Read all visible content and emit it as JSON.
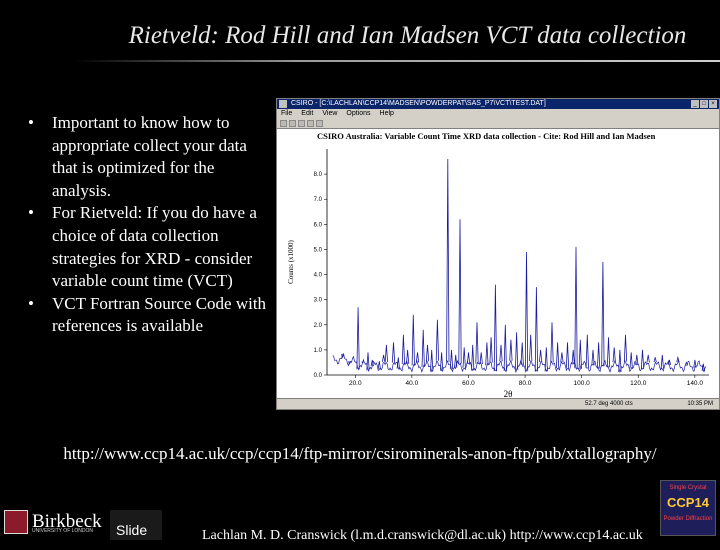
{
  "slide": {
    "title": "Rietveld: Rod Hill and Ian Madsen VCT data collection",
    "bullets": [
      "Important to know how to appropriate collect your data that is optimized for the analysis.",
      "For Rietveld: If you do have a choice of data collection strategies for XRD - consider variable count time (VCT)",
      "VCT Fortran Source Code with references is available"
    ],
    "bullet_marker": "•",
    "url": "http://www.ccp14.ac.uk/ccp/ccp14/ftp-mirror/csirominerals-anon-ftp/pub/xtallography/",
    "footer": {
      "institution": "Birkbeck",
      "institution_sub": "UNIVERSITY OF LONDON",
      "slide_label": "Slide",
      "author": "Lachlan M. D. Cranswick (l.m.d.cranswick@dl.ac.uk) http://www.ccp14.ac.uk",
      "ccp_logo_top": "Single Crystal",
      "ccp_logo_mid": "CCP14",
      "ccp_logo_bottom": "Powder Diffraction"
    }
  },
  "screenshot": {
    "window_title": "CSIRO - [C:\\LACHLAN\\CCP14\\MADSEN\\POWDERPAT\\SAS_P7\\VCT\\TEST.DAT]",
    "menu": [
      "File",
      "Edit",
      "View",
      "Options",
      "Help"
    ],
    "status_left": "52.7 deg 4000 cts",
    "status_right": "10:35 PM",
    "icons": [
      "app-icon",
      "minimize-icon",
      "maximize-icon",
      "close-icon"
    ]
  },
  "chart_data": {
    "type": "line",
    "title": "CSIRO Australia: Variable Count Time XRD data collection - Cite: Rod Hill and Ian Madsen",
    "xlabel": "2θ",
    "ylabel": "Counts (x1000)",
    "xlim": [
      10,
      145
    ],
    "ylim": [
      0,
      9
    ],
    "x_ticks": [
      "20.0",
      "40.0",
      "60.0",
      "80.0",
      "100.0",
      "120.0",
      "140.0"
    ],
    "y_ticks": [
      "0.0",
      "1.0",
      "2.0",
      "3.0",
      "4.0",
      "5.0",
      "6.0",
      "7.0",
      "8.0"
    ],
    "line_color": "#1a1aa0",
    "peaks": [
      {
        "x": 15.5,
        "y": 0.7
      },
      {
        "x": 18.0,
        "y": 0.45
      },
      {
        "x": 21.0,
        "y": 2.7
      },
      {
        "x": 22.6,
        "y": 0.5
      },
      {
        "x": 24.5,
        "y": 0.9
      },
      {
        "x": 26.0,
        "y": 0.6
      },
      {
        "x": 28.5,
        "y": 0.55
      },
      {
        "x": 30.0,
        "y": 0.8
      },
      {
        "x": 31.0,
        "y": 1.2
      },
      {
        "x": 33.5,
        "y": 1.3
      },
      {
        "x": 35.2,
        "y": 0.7
      },
      {
        "x": 37.0,
        "y": 1.6
      },
      {
        "x": 38.5,
        "y": 1.0
      },
      {
        "x": 40.5,
        "y": 2.4
      },
      {
        "x": 42.0,
        "y": 0.9
      },
      {
        "x": 44.0,
        "y": 1.8
      },
      {
        "x": 45.5,
        "y": 1.2
      },
      {
        "x": 47.0,
        "y": 1.0
      },
      {
        "x": 49.0,
        "y": 2.2
      },
      {
        "x": 50.5,
        "y": 0.9
      },
      {
        "x": 52.7,
        "y": 8.6
      },
      {
        "x": 54.0,
        "y": 1.0
      },
      {
        "x": 55.5,
        "y": 0.8
      },
      {
        "x": 57.0,
        "y": 6.2
      },
      {
        "x": 58.5,
        "y": 1.1
      },
      {
        "x": 60.0,
        "y": 0.9
      },
      {
        "x": 61.5,
        "y": 1.2
      },
      {
        "x": 63.0,
        "y": 2.1
      },
      {
        "x": 64.5,
        "y": 0.9
      },
      {
        "x": 66.5,
        "y": 1.3
      },
      {
        "x": 68.0,
        "y": 1.5
      },
      {
        "x": 69.5,
        "y": 3.6
      },
      {
        "x": 71.5,
        "y": 1.2
      },
      {
        "x": 73.0,
        "y": 2.0
      },
      {
        "x": 75.0,
        "y": 1.4
      },
      {
        "x": 77.0,
        "y": 1.7
      },
      {
        "x": 79.0,
        "y": 1.3
      },
      {
        "x": 80.5,
        "y": 4.9
      },
      {
        "x": 82.0,
        "y": 1.6
      },
      {
        "x": 84.0,
        "y": 3.5
      },
      {
        "x": 85.5,
        "y": 1.0
      },
      {
        "x": 87.5,
        "y": 1.1
      },
      {
        "x": 89.5,
        "y": 2.1
      },
      {
        "x": 91.5,
        "y": 1.3
      },
      {
        "x": 93.0,
        "y": 0.9
      },
      {
        "x": 95.0,
        "y": 1.3
      },
      {
        "x": 97.0,
        "y": 1.0
      },
      {
        "x": 98.0,
        "y": 5.1
      },
      {
        "x": 99.5,
        "y": 1.4
      },
      {
        "x": 102.0,
        "y": 1.6
      },
      {
        "x": 104.0,
        "y": 1.0
      },
      {
        "x": 106.0,
        "y": 1.3
      },
      {
        "x": 107.5,
        "y": 4.5
      },
      {
        "x": 109.5,
        "y": 1.5
      },
      {
        "x": 111.5,
        "y": 1.1
      },
      {
        "x": 113.5,
        "y": 1.0
      },
      {
        "x": 115.5,
        "y": 1.6
      },
      {
        "x": 117.5,
        "y": 0.9
      },
      {
        "x": 119.5,
        "y": 0.8
      },
      {
        "x": 121.5,
        "y": 1.0
      },
      {
        "x": 123.5,
        "y": 0.8
      },
      {
        "x": 126.0,
        "y": 0.7
      },
      {
        "x": 128.5,
        "y": 0.8
      },
      {
        "x": 131.0,
        "y": 0.6
      },
      {
        "x": 134.0,
        "y": 0.7
      },
      {
        "x": 137.0,
        "y": 0.5
      },
      {
        "x": 140.0,
        "y": 0.6
      },
      {
        "x": 143.0,
        "y": 0.45
      }
    ]
  }
}
